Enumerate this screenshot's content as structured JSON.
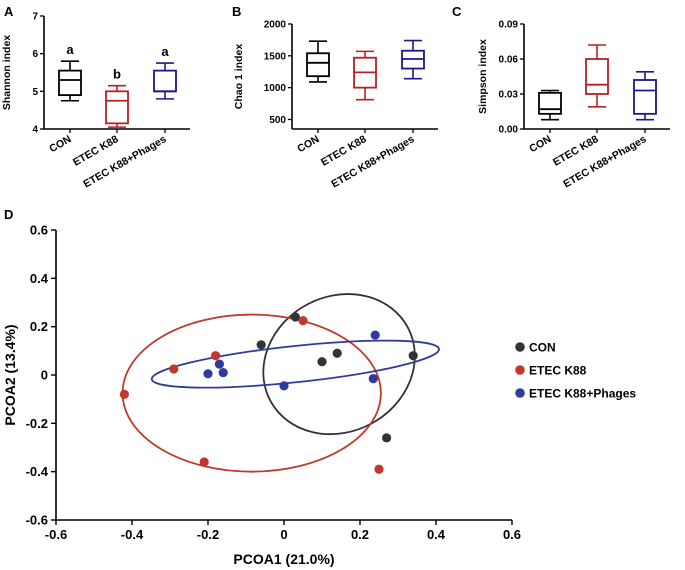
{
  "chart_data": [
    {
      "panel": "A",
      "type": "box",
      "ylabel": "Shannon index",
      "ylim": [
        4,
        7
      ],
      "yticks": [
        "4",
        "5",
        "6",
        "7"
      ],
      "categories": [
        "CON",
        "ETEC K88",
        "ETEC K88+Phages"
      ],
      "colors": [
        "#000000",
        "#b22222",
        "#1a1a8c"
      ],
      "boxes": [
        {
          "min": 4.75,
          "q1": 4.9,
          "median": 5.3,
          "q3": 5.55,
          "max": 5.8
        },
        {
          "min": 4.05,
          "q1": 4.15,
          "median": 4.75,
          "q3": 5.0,
          "max": 5.15
        },
        {
          "min": 4.8,
          "q1": 5.0,
          "median": 5.0,
          "q3": 5.55,
          "max": 5.75
        }
      ],
      "annotations": [
        "a",
        "b",
        "a"
      ]
    },
    {
      "panel": "B",
      "type": "box",
      "ylabel": "Chao 1 index",
      "ylim": [
        350,
        2000
      ],
      "yticks": [
        "500",
        "1000",
        "1500",
        "2000"
      ],
      "categories": [
        "CON",
        "ETEC K88",
        "ETEC K88+Phages"
      ],
      "colors": [
        "#000000",
        "#b22222",
        "#1a1a8c"
      ],
      "boxes": [
        {
          "min": 1090,
          "q1": 1180,
          "median": 1390,
          "q3": 1540,
          "max": 1730
        },
        {
          "min": 810,
          "q1": 1000,
          "median": 1240,
          "q3": 1470,
          "max": 1570
        },
        {
          "min": 1140,
          "q1": 1300,
          "median": 1450,
          "q3": 1580,
          "max": 1740
        }
      ]
    },
    {
      "panel": "C",
      "type": "box",
      "ylabel": "Simpson index",
      "ylim": [
        0,
        0.09
      ],
      "yticks": [
        "0.00",
        "0.03",
        "0.06",
        "0.09"
      ],
      "categories": [
        "CON",
        "ETEC K88",
        "ETEC K88+Phages"
      ],
      "colors": [
        "#000000",
        "#b22222",
        "#1a1a8c"
      ],
      "boxes": [
        {
          "min": 0.008,
          "q1": 0.013,
          "median": 0.017,
          "q3": 0.031,
          "max": 0.033
        },
        {
          "min": 0.019,
          "q1": 0.03,
          "median": 0.038,
          "q3": 0.06,
          "max": 0.072
        },
        {
          "min": 0.008,
          "q1": 0.013,
          "median": 0.033,
          "q3": 0.042,
          "max": 0.049
        }
      ]
    },
    {
      "panel": "D",
      "type": "scatter",
      "xlabel": "PCOA1 (21.0%)",
      "ylabel": "PCOA2 (13.4%)",
      "xlim": [
        -0.6,
        0.6
      ],
      "ylim": [
        -0.6,
        0.6
      ],
      "xticks": [
        "-0.6",
        "-0.4",
        "-0.2",
        "0",
        "0.2",
        "0.4",
        "0.6"
      ],
      "yticks": [
        "-0.6",
        "-0.4",
        "-0.2",
        "0",
        "0.2",
        "0.4",
        "0.6"
      ],
      "series": [
        {
          "name": "CON",
          "color": "#333333",
          "points": [
            [
              0.03,
              0.24
            ],
            [
              -0.06,
              0.125
            ],
            [
              0.1,
              0.055
            ],
            [
              0.14,
              0.09
            ],
            [
              0.34,
              0.08
            ],
            [
              0.27,
              -0.26
            ]
          ],
          "ellipse": {
            "cx": 0.145,
            "cy": 0.045,
            "rx": 0.205,
            "ry": 0.28,
            "angle_deg": -28
          }
        },
        {
          "name": "ETEC K88",
          "color": "#c0392b",
          "points": [
            [
              -0.42,
              -0.08
            ],
            [
              -0.29,
              0.025
            ],
            [
              -0.18,
              0.08
            ],
            [
              -0.21,
              -0.36
            ],
            [
              0.05,
              0.225
            ],
            [
              0.25,
              -0.39
            ]
          ],
          "ellipse": {
            "cx": -0.085,
            "cy": -0.075,
            "rx": 0.34,
            "ry": 0.325,
            "angle_deg": 0
          }
        },
        {
          "name": "ETEC K88+Phages",
          "color": "#2e3a9c",
          "points": [
            [
              -0.2,
              0.005
            ],
            [
              -0.17,
              0.045
            ],
            [
              -0.16,
              0.01
            ],
            [
              0.0,
              -0.045
            ],
            [
              0.24,
              0.165
            ],
            [
              0.235,
              -0.015
            ]
          ],
          "ellipse": {
            "cx": 0.03,
            "cy": 0.045,
            "rx": 0.38,
            "ry": 0.075,
            "angle_deg": -6
          }
        }
      ]
    }
  ],
  "panel_letters": [
    "A",
    "B",
    "C",
    "D"
  ]
}
